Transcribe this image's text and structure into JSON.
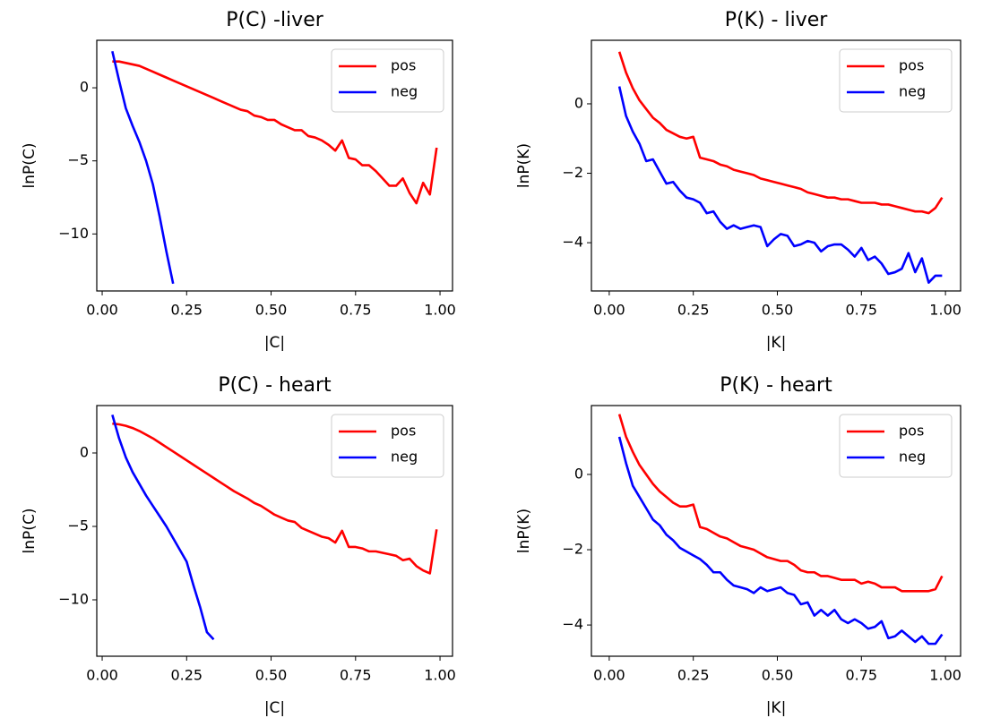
{
  "chart_data": [
    {
      "type": "line",
      "title": "P(C) -liver",
      "xlabel": "|C|",
      "ylabel": "lnP(C)",
      "legend": "upper right",
      "grid": false,
      "x": [
        0.03,
        0.05,
        0.07,
        0.09,
        0.11,
        0.13,
        0.15,
        0.17,
        0.19,
        0.21,
        0.23,
        0.25,
        0.27,
        0.29,
        0.31,
        0.33,
        0.35,
        0.37,
        0.39,
        0.41,
        0.43,
        0.45,
        0.47,
        0.49,
        0.51,
        0.53,
        0.55,
        0.57,
        0.59,
        0.61,
        0.63,
        0.65,
        0.67,
        0.69,
        0.71,
        0.73,
        0.75,
        0.77,
        0.79,
        0.81,
        0.83,
        0.85,
        0.87,
        0.89,
        0.91,
        0.93,
        0.95,
        0.97,
        0.99
      ],
      "series": [
        {
          "name": "pos",
          "color": "#ff0000",
          "values": [
            1.8,
            1.8,
            1.7,
            1.6,
            1.5,
            1.3,
            1.1,
            0.9,
            0.7,
            0.5,
            0.3,
            0.1,
            -0.1,
            -0.3,
            -0.5,
            -0.7,
            -0.9,
            -1.1,
            -1.3,
            -1.5,
            -1.6,
            -1.9,
            -2.0,
            -2.2,
            -2.2,
            -2.5,
            -2.7,
            -2.9,
            -2.9,
            -3.3,
            -3.4,
            -3.6,
            -3.9,
            -4.3,
            -3.6,
            -4.8,
            -4.9,
            -5.3,
            -5.3,
            -5.7,
            -6.2,
            -6.7,
            -6.7,
            -6.2,
            -7.2,
            -7.9,
            -6.5,
            -7.3,
            -4.1
          ]
        },
        {
          "name": "neg",
          "color": "#0000ff",
          "values": [
            2.5,
            0.5,
            -1.4,
            -2.6,
            -3.7,
            -5.0,
            -6.6,
            -8.8,
            -11.2,
            -13.4,
            null,
            null,
            null,
            null,
            null,
            null,
            null,
            null,
            null,
            null,
            null,
            null,
            null,
            null,
            null,
            null,
            null,
            null,
            null,
            null,
            null,
            null,
            null,
            null,
            null,
            null,
            null,
            null,
            null,
            null,
            null,
            null,
            null,
            null,
            null,
            null,
            null,
            null,
            null
          ]
        }
      ],
      "xlim": [
        -0.016,
        1.037
      ],
      "ylim": [
        -13.9,
        3.25
      ],
      "xticks": [
        {
          "value": 0,
          "label": "0.00"
        },
        {
          "value": 0.25,
          "label": "0.25"
        },
        {
          "value": 0.5,
          "label": "0.50"
        },
        {
          "value": 0.75,
          "label": "0.75"
        },
        {
          "value": 1,
          "label": "1.00"
        }
      ],
      "yticks": [
        {
          "value": -10,
          "label": "−10"
        },
        {
          "value": -5,
          "label": "−5"
        },
        0
      ]
    },
    {
      "type": "line",
      "title": "P(K) - liver",
      "xlabel": "|K|",
      "ylabel": "lnP(K)",
      "legend": "upper right",
      "grid": false,
      "x": [
        0.03,
        0.05,
        0.07,
        0.09,
        0.11,
        0.13,
        0.15,
        0.17,
        0.19,
        0.21,
        0.23,
        0.25,
        0.27,
        0.29,
        0.31,
        0.33,
        0.35,
        0.37,
        0.39,
        0.41,
        0.43,
        0.45,
        0.47,
        0.49,
        0.51,
        0.53,
        0.55,
        0.57,
        0.59,
        0.61,
        0.63,
        0.65,
        0.67,
        0.69,
        0.71,
        0.73,
        0.75,
        0.77,
        0.79,
        0.81,
        0.83,
        0.85,
        0.87,
        0.89,
        0.91,
        0.93,
        0.95,
        0.97,
        0.99
      ],
      "series": [
        {
          "name": "pos",
          "color": "#ff0000",
          "values": [
            1.5,
            0.9,
            0.45,
            0.1,
            -0.15,
            -0.4,
            -0.55,
            -0.75,
            -0.85,
            -0.95,
            -1.0,
            -0.95,
            -1.55,
            -1.6,
            -1.65,
            -1.75,
            -1.8,
            -1.9,
            -1.95,
            -2.0,
            -2.05,
            -2.15,
            -2.2,
            -2.25,
            -2.3,
            -2.35,
            -2.4,
            -2.45,
            -2.55,
            -2.6,
            -2.65,
            -2.7,
            -2.7,
            -2.75,
            -2.75,
            -2.8,
            -2.85,
            -2.85,
            -2.85,
            -2.9,
            -2.9,
            -2.95,
            -3.0,
            -3.05,
            -3.1,
            -3.1,
            -3.15,
            -3.0,
            -2.7
          ]
        },
        {
          "name": "neg",
          "color": "#0000ff",
          "values": [
            0.5,
            -0.35,
            -0.8,
            -1.15,
            -1.65,
            -1.6,
            -1.95,
            -2.3,
            -2.25,
            -2.5,
            -2.7,
            -2.75,
            -2.85,
            -3.15,
            -3.1,
            -3.4,
            -3.6,
            -3.5,
            -3.6,
            -3.55,
            -3.5,
            -3.55,
            -4.1,
            -3.9,
            -3.75,
            -3.8,
            -4.1,
            -4.05,
            -3.95,
            -4.0,
            -4.25,
            -4.1,
            -4.05,
            -4.05,
            -4.2,
            -4.4,
            -4.15,
            -4.5,
            -4.4,
            -4.6,
            -4.9,
            -4.85,
            -4.75,
            -4.3,
            -4.85,
            -4.45,
            -5.15,
            -4.95,
            -4.95
          ]
        }
      ],
      "xlim": [
        -0.053,
        1.045
      ],
      "ylim": [
        -5.39,
        1.83
      ],
      "xticks": [
        {
          "value": 0,
          "label": "0.00"
        },
        {
          "value": 0.25,
          "label": "0.25"
        },
        {
          "value": 0.5,
          "label": "0.50"
        },
        {
          "value": 0.75,
          "label": "0.75"
        },
        {
          "value": 1,
          "label": "1.00"
        }
      ],
      "yticks": [
        {
          "value": -4,
          "label": "−4"
        },
        {
          "value": -2,
          "label": "−2"
        },
        0
      ]
    },
    {
      "type": "line",
      "title": "P(C) - heart",
      "xlabel": "|C|",
      "ylabel": "lnP(C)",
      "legend": "upper right",
      "grid": false,
      "x": [
        0.03,
        0.05,
        0.07,
        0.09,
        0.11,
        0.13,
        0.15,
        0.17,
        0.19,
        0.21,
        0.23,
        0.25,
        0.27,
        0.29,
        0.31,
        0.33,
        0.35,
        0.37,
        0.39,
        0.41,
        0.43,
        0.45,
        0.47,
        0.49,
        0.51,
        0.53,
        0.55,
        0.57,
        0.59,
        0.61,
        0.63,
        0.65,
        0.67,
        0.69,
        0.71,
        0.73,
        0.75,
        0.77,
        0.79,
        0.81,
        0.83,
        0.85,
        0.87,
        0.89,
        0.91,
        0.93,
        0.95,
        0.97,
        0.99
      ],
      "series": [
        {
          "name": "pos",
          "color": "#ff0000",
          "values": [
            2.0,
            1.95,
            1.85,
            1.7,
            1.5,
            1.25,
            1.0,
            0.7,
            0.4,
            0.1,
            -0.2,
            -0.5,
            -0.8,
            -1.1,
            -1.4,
            -1.7,
            -2.0,
            -2.3,
            -2.6,
            -2.85,
            -3.1,
            -3.4,
            -3.6,
            -3.9,
            -4.2,
            -4.4,
            -4.6,
            -4.7,
            -5.1,
            -5.3,
            -5.5,
            -5.7,
            -5.8,
            -6.1,
            -5.3,
            -6.4,
            -6.4,
            -6.5,
            -6.7,
            -6.7,
            -6.8,
            -6.9,
            -7.0,
            -7.3,
            -7.2,
            -7.7,
            -8.0,
            -8.2,
            -5.2
          ]
        },
        {
          "name": "neg",
          "color": "#0000ff",
          "values": [
            2.6,
            1.0,
            -0.3,
            -1.3,
            -2.1,
            -2.9,
            -3.6,
            -4.3,
            -5.0,
            -5.8,
            -6.6,
            -7.4,
            -9.0,
            -10.5,
            -12.2,
            -12.7,
            null,
            null,
            null,
            null,
            null,
            null,
            null,
            null,
            null,
            null,
            null,
            null,
            null,
            null,
            null,
            null,
            null,
            null,
            null,
            null,
            null,
            null,
            null,
            null,
            null,
            null,
            null,
            null,
            null,
            null,
            null,
            null,
            null
          ]
        }
      ],
      "xlim": [
        -0.016,
        1.037
      ],
      "ylim": [
        -13.84,
        3.23
      ],
      "xticks": [
        {
          "value": 0,
          "label": "0.00"
        },
        {
          "value": 0.25,
          "label": "0.25"
        },
        {
          "value": 0.5,
          "label": "0.50"
        },
        {
          "value": 0.75,
          "label": "0.75"
        },
        {
          "value": 1,
          "label": "1.00"
        }
      ],
      "yticks": [
        {
          "value": -10,
          "label": "−10"
        },
        {
          "value": -5,
          "label": "−5"
        },
        0
      ]
    },
    {
      "type": "line",
      "title": "P(K) - heart",
      "xlabel": "|K|",
      "ylabel": "lnP(K)",
      "legend": "upper right",
      "grid": false,
      "x": [
        0.03,
        0.05,
        0.07,
        0.09,
        0.11,
        0.13,
        0.15,
        0.17,
        0.19,
        0.21,
        0.23,
        0.25,
        0.27,
        0.29,
        0.31,
        0.33,
        0.35,
        0.37,
        0.39,
        0.41,
        0.43,
        0.45,
        0.47,
        0.49,
        0.51,
        0.53,
        0.55,
        0.57,
        0.59,
        0.61,
        0.63,
        0.65,
        0.67,
        0.69,
        0.71,
        0.73,
        0.75,
        0.77,
        0.79,
        0.81,
        0.83,
        0.85,
        0.87,
        0.89,
        0.91,
        0.93,
        0.95,
        0.97,
        0.99
      ],
      "series": [
        {
          "name": "pos",
          "color": "#ff0000",
          "values": [
            1.6,
            1.0,
            0.6,
            0.25,
            0.0,
            -0.25,
            -0.45,
            -0.6,
            -0.75,
            -0.85,
            -0.85,
            -0.8,
            -1.4,
            -1.45,
            -1.55,
            -1.65,
            -1.7,
            -1.8,
            -1.9,
            -1.95,
            -2.0,
            -2.1,
            -2.2,
            -2.25,
            -2.3,
            -2.3,
            -2.4,
            -2.55,
            -2.6,
            -2.6,
            -2.7,
            -2.7,
            -2.75,
            -2.8,
            -2.8,
            -2.8,
            -2.9,
            -2.85,
            -2.9,
            -3.0,
            -3.0,
            -3.0,
            -3.1,
            -3.1,
            -3.1,
            -3.1,
            -3.1,
            -3.05,
            -2.7
          ]
        },
        {
          "name": "neg",
          "color": "#0000ff",
          "values": [
            1.0,
            0.3,
            -0.3,
            -0.6,
            -0.9,
            -1.2,
            -1.35,
            -1.6,
            -1.75,
            -1.95,
            -2.05,
            -2.15,
            -2.25,
            -2.4,
            -2.6,
            -2.6,
            -2.8,
            -2.95,
            -3.0,
            -3.05,
            -3.15,
            -3.0,
            -3.1,
            -3.05,
            -3.0,
            -3.15,
            -3.2,
            -3.45,
            -3.4,
            -3.75,
            -3.6,
            -3.75,
            -3.6,
            -3.85,
            -3.95,
            -3.85,
            -3.95,
            -4.1,
            -4.05,
            -3.9,
            -4.35,
            -4.3,
            -4.15,
            -4.3,
            -4.45,
            -4.3,
            -4.5,
            -4.5,
            -4.25
          ]
        }
      ],
      "xlim": [
        -0.053,
        1.045
      ],
      "ylim": [
        -4.83,
        1.83
      ],
      "xticks": [
        {
          "value": 0,
          "label": "0.00"
        },
        {
          "value": 0.25,
          "label": "0.25"
        },
        {
          "value": 0.5,
          "label": "0.50"
        },
        {
          "value": 0.75,
          "label": "0.75"
        },
        {
          "value": 1,
          "label": "1.00"
        }
      ],
      "yticks": [
        {
          "value": -4,
          "label": "−4"
        },
        {
          "value": -2,
          "label": "−2"
        },
        0
      ]
    }
  ]
}
